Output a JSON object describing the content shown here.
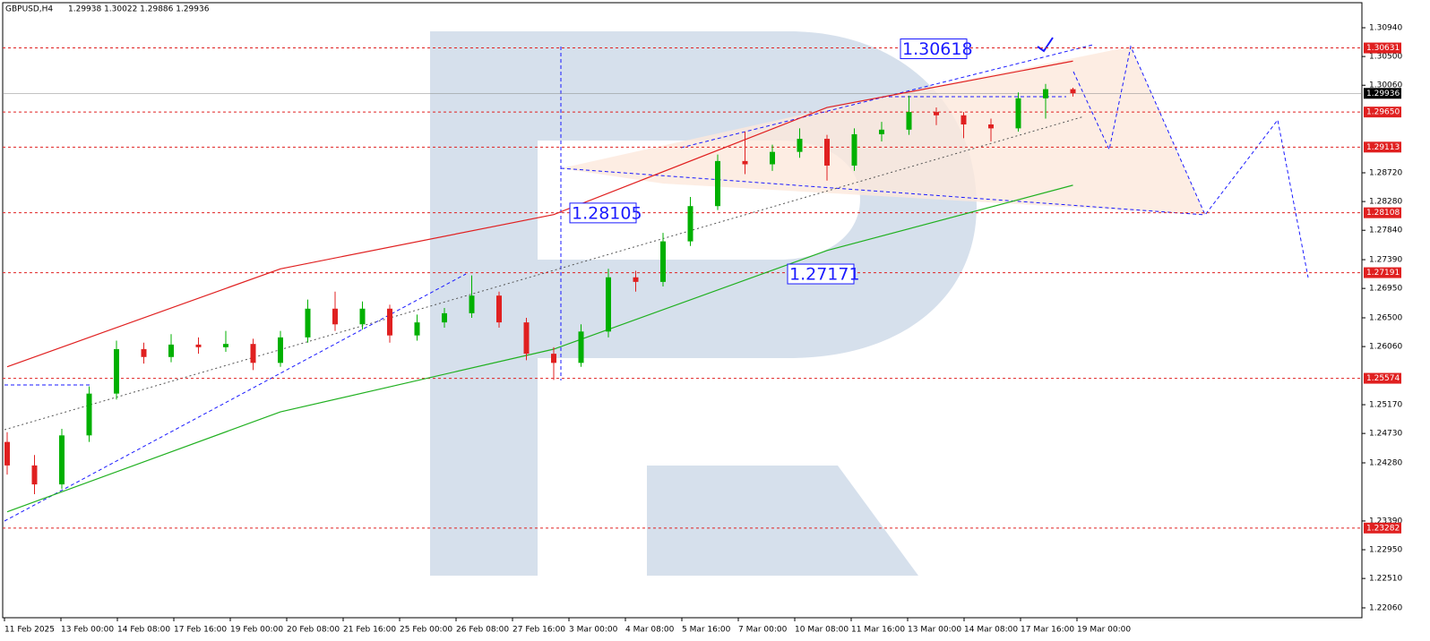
{
  "header": {
    "symbol": "GBPUSD,H4",
    "quote": "1.29938 1.30022 1.29886 1.29936"
  },
  "chart_data": {
    "type": "candlestick",
    "up_color": "#00b000",
    "down_color": "#e02020",
    "ylim": [
      1.21909,
      1.31365
    ],
    "yticks": [
      {
        "value": 1.3094,
        "label": "1.30940"
      },
      {
        "value": 1.305,
        "label": "1.30500"
      },
      {
        "value": 1.3006,
        "label": "1.30060"
      },
      {
        "value": 1.2872,
        "label": "1.28720"
      },
      {
        "value": 1.2828,
        "label": "1.28280"
      },
      {
        "value": 1.2784,
        "label": "1.27840"
      },
      {
        "value": 1.2739,
        "label": "1.27390"
      },
      {
        "value": 1.2695,
        "label": "1.26950"
      },
      {
        "value": 1.265,
        "label": "1.26500"
      },
      {
        "value": 1.2606,
        "label": "1.26060"
      },
      {
        "value": 1.2517,
        "label": "1.25170"
      },
      {
        "value": 1.2473,
        "label": "1.24730"
      },
      {
        "value": 1.2428,
        "label": "1.24280"
      },
      {
        "value": 1.2339,
        "label": "1.23390"
      },
      {
        "value": 1.2295,
        "label": "1.22950"
      },
      {
        "value": 1.2251,
        "label": "1.22510"
      },
      {
        "value": 1.2206,
        "label": "1.22060"
      }
    ],
    "levels": [
      1.30631,
      {
        "value": 1.2965,
        "label": "1.29650"
      },
      1.29113,
      1.28108,
      1.27191,
      1.25574,
      1.23282
    ],
    "level_color": "#e02020",
    "current_price": 1.29936,
    "annotations": [
      {
        "value": 1.30618,
        "label": "1.30618"
      },
      {
        "value": 1.28105,
        "label": "1.28105"
      },
      {
        "value": 1.27171,
        "label": "1.27171"
      }
    ],
    "time_labels": [
      "11 Feb 2025",
      "13 Feb 00:00",
      "14 Feb 08:00",
      "17 Feb 16:00",
      "19 Feb 00:00",
      "20 Feb 08:00",
      "21 Feb 16:00",
      "25 Feb 00:00",
      "26 Feb 08:00",
      "27 Feb 16:00",
      "3 Mar 00:00",
      "4 Mar 08:00",
      "5 Mar 16:00",
      "7 Mar 00:00",
      "10 Mar 08:00",
      "11 Mar 16:00",
      "13 Mar 00:00",
      "14 Mar 08:00",
      "17 Mar 16:00",
      "19 Mar 00:00"
    ],
    "candles": [
      [
        1.246,
        1.2475,
        1.241,
        1.2424
      ],
      [
        1.2424,
        1.244,
        1.238,
        1.2395
      ],
      [
        1.2395,
        1.248,
        1.2388,
        1.247
      ],
      [
        1.247,
        1.2545,
        1.246,
        1.2534
      ],
      [
        1.2534,
        1.2615,
        1.2525,
        1.2602
      ],
      [
        1.2602,
        1.2612,
        1.258,
        1.259
      ],
      [
        1.259,
        1.2625,
        1.2582,
        1.2609
      ],
      [
        1.2609,
        1.262,
        1.2595,
        1.2605
      ],
      [
        1.2605,
        1.263,
        1.2598,
        1.261
      ],
      [
        1.261,
        1.2618,
        1.257,
        1.2581
      ],
      [
        1.2581,
        1.263,
        1.2575,
        1.262
      ],
      [
        1.262,
        1.2678,
        1.2612,
        1.2664
      ],
      [
        1.2664,
        1.269,
        1.263,
        1.264
      ],
      [
        1.264,
        1.2675,
        1.2632,
        1.2664
      ],
      [
        1.2664,
        1.267,
        1.2612,
        1.2623
      ],
      [
        1.2623,
        1.2655,
        1.2615,
        1.2643
      ],
      [
        1.2643,
        1.2665,
        1.2635,
        1.2657
      ],
      [
        1.2657,
        1.2715,
        1.265,
        1.2684
      ],
      [
        1.2684,
        1.269,
        1.2635,
        1.2643
      ],
      [
        1.2643,
        1.265,
        1.2585,
        1.2595
      ],
      [
        1.2595,
        1.2605,
        1.2555,
        1.2581
      ],
      [
        1.2581,
        1.264,
        1.2575,
        1.2629
      ],
      [
        1.2629,
        1.2725,
        1.262,
        1.2712
      ],
      [
        1.2712,
        1.2722,
        1.269,
        1.2705
      ],
      [
        1.2705,
        1.278,
        1.2698,
        1.2767
      ],
      [
        1.2767,
        1.2835,
        1.276,
        1.2821
      ],
      [
        1.2821,
        1.29,
        1.2815,
        1.289
      ],
      [
        1.289,
        1.2935,
        1.287,
        1.2885
      ],
      [
        1.2885,
        1.2915,
        1.2875,
        1.2904
      ],
      [
        1.2904,
        1.294,
        1.2895,
        1.2924
      ],
      [
        1.2924,
        1.293,
        1.286,
        1.2883
      ],
      [
        1.2883,
        1.294,
        1.2875,
        1.2931
      ],
      [
        1.2931,
        1.295,
        1.292,
        1.2938
      ],
      [
        1.2938,
        1.299,
        1.293,
        1.2965
      ],
      [
        1.2965,
        1.2972,
        1.2945,
        1.296
      ],
      [
        1.296,
        1.2965,
        1.2925,
        1.2946
      ],
      [
        1.2946,
        1.2955,
        1.292,
        1.294
      ],
      [
        1.294,
        1.2995,
        1.2935,
        1.2986
      ],
      [
        1.2986,
        1.3008,
        1.2955,
        1.3
      ],
      [
        1.3,
        1.30022,
        1.29886,
        1.29936
      ]
    ],
    "lines": [
      {
        "color": "#e02020",
        "x": [
          0,
          10,
          20,
          30,
          39
        ],
        "values": [
          1.2575,
          1.2725,
          1.2808,
          1.2972,
          1.3043
        ]
      },
      {
        "color": "#20b020",
        "x": [
          0,
          10,
          20,
          30,
          39
        ],
        "values": [
          1.2353,
          1.2506,
          1.2602,
          1.2753,
          1.2853
        ]
      }
    ]
  }
}
